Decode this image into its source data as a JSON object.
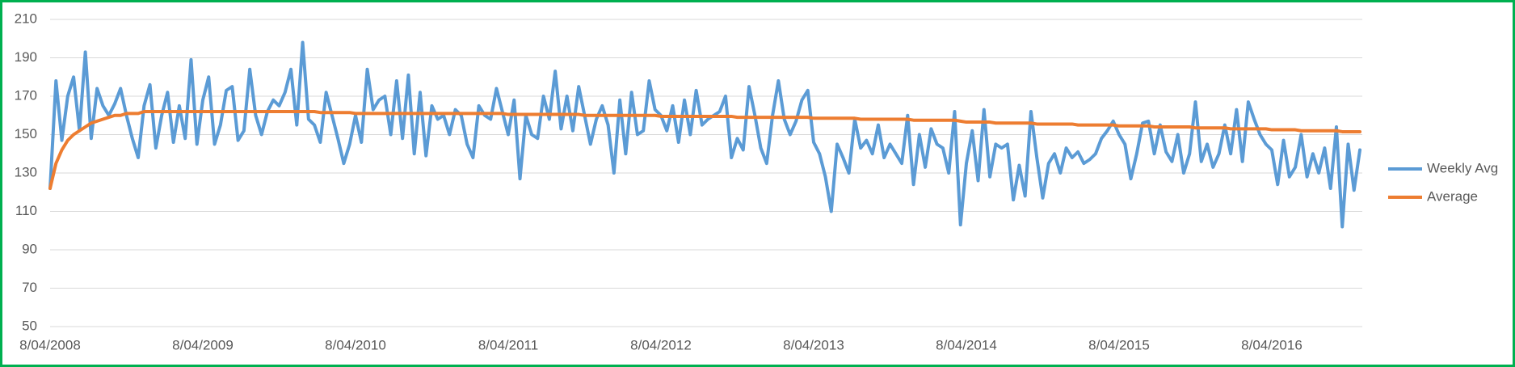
{
  "chart_data": {
    "type": "line",
    "categories": [
      "8/04/2008",
      null,
      null,
      null,
      null,
      null,
      null,
      null,
      null,
      null,
      null,
      null,
      null,
      null,
      null,
      null,
      null,
      null,
      null,
      null,
      null,
      null,
      null,
      null,
      null,
      null,
      "8/04/2009",
      null,
      null,
      null,
      null,
      null,
      null,
      null,
      null,
      null,
      null,
      null,
      null,
      null,
      null,
      null,
      null,
      null,
      null,
      null,
      null,
      null,
      null,
      null,
      null,
      null,
      "8/04/2010",
      null,
      null,
      null,
      null,
      null,
      null,
      null,
      null,
      null,
      null,
      null,
      null,
      null,
      null,
      null,
      null,
      null,
      null,
      null,
      null,
      null,
      null,
      null,
      null,
      null,
      "8/04/2011",
      null,
      null,
      null,
      null,
      null,
      null,
      null,
      null,
      null,
      null,
      null,
      null,
      null,
      null,
      null,
      null,
      null,
      null,
      null,
      null,
      null,
      null,
      null,
      null,
      null,
      "8/04/2012",
      null,
      null,
      null,
      null,
      null,
      null,
      null,
      null,
      null,
      null,
      null,
      null,
      null,
      null,
      null,
      null,
      null,
      null,
      null,
      null,
      null,
      null,
      null,
      null,
      null,
      "8/04/2013",
      null,
      null,
      null,
      null,
      null,
      null,
      null,
      null,
      null,
      null,
      null,
      null,
      null,
      null,
      null,
      null,
      null,
      null,
      null,
      null,
      null,
      null,
      null,
      null,
      null,
      "8/04/2014",
      null,
      null,
      null,
      null,
      null,
      null,
      null,
      null,
      null,
      null,
      null,
      null,
      null,
      null,
      null,
      null,
      null,
      null,
      null,
      null,
      null,
      null,
      null,
      null,
      null,
      "8/04/2015",
      null,
      null,
      null,
      null,
      null,
      null,
      null,
      null,
      null,
      null,
      null,
      null,
      null,
      null,
      null,
      null,
      null,
      null,
      null,
      null,
      null,
      null,
      null,
      null,
      null,
      "8/04/2016",
      null,
      null,
      null,
      null,
      null,
      null,
      null,
      null,
      null,
      null,
      null,
      null,
      null,
      null,
      null
    ],
    "series": [
      {
        "name": "Weekly Avg",
        "color": "#5b9bd5",
        "values": [
          122,
          178,
          147,
          170,
          180,
          152,
          193,
          148,
          174,
          165,
          160,
          166,
          174,
          160,
          148,
          138,
          165,
          176,
          143,
          160,
          172,
          146,
          165,
          148,
          189,
          145,
          168,
          180,
          145,
          155,
          173,
          175,
          147,
          152,
          184,
          160,
          150,
          162,
          168,
          165,
          172,
          184,
          155,
          198,
          158,
          155,
          146,
          172,
          160,
          148,
          135,
          145,
          160,
          146,
          184,
          163,
          168,
          170,
          150,
          178,
          148,
          181,
          140,
          172,
          139,
          165,
          158,
          160,
          150,
          163,
          160,
          145,
          138,
          165,
          160,
          158,
          174,
          162,
          150,
          168,
          127,
          160,
          150,
          148,
          170,
          158,
          183,
          153,
          170,
          152,
          175,
          160,
          145,
          158,
          165,
          155,
          130,
          168,
          140,
          172,
          150,
          152,
          178,
          163,
          160,
          152,
          165,
          146,
          168,
          150,
          173,
          155,
          158,
          160,
          162,
          170,
          138,
          148,
          142,
          175,
          160,
          143,
          135,
          160,
          178,
          158,
          150,
          157,
          168,
          173,
          146,
          140,
          128,
          110,
          145,
          138,
          130,
          158,
          143,
          147,
          140,
          155,
          138,
          145,
          140,
          135,
          160,
          124,
          150,
          133,
          153,
          145,
          143,
          130,
          162,
          103,
          135,
          152,
          126,
          163,
          128,
          145,
          143,
          145,
          116,
          134,
          118,
          162,
          138,
          117,
          135,
          140,
          130,
          143,
          138,
          141,
          135,
          137,
          140,
          148,
          152,
          157,
          150,
          145,
          127,
          140,
          156,
          157,
          140,
          155,
          141,
          136,
          150,
          130,
          140,
          167,
          136,
          145,
          133,
          140,
          155,
          140,
          163,
          136,
          167,
          158,
          150,
          145,
          142,
          124,
          147,
          128,
          133,
          150,
          128,
          140,
          130,
          143,
          122,
          154,
          102,
          145,
          121,
          142
        ]
      },
      {
        "name": "Average",
        "color": "#ed7d31",
        "values": [
          122,
          135,
          142,
          147,
          150,
          152,
          154,
          156,
          157,
          158,
          159,
          160,
          160,
          161,
          161,
          161,
          162,
          162,
          162,
          162,
          162,
          162,
          162,
          162,
          162,
          162,
          162,
          162,
          162,
          162,
          162,
          162,
          162,
          162,
          162,
          162,
          162,
          162,
          162,
          162,
          162,
          162,
          162,
          162,
          162,
          162,
          161.5,
          161.5,
          161.5,
          161.5,
          161.5,
          161.5,
          161,
          161,
          161,
          161,
          161,
          161,
          161,
          161,
          161,
          161,
          161,
          161,
          161,
          161,
          161,
          161,
          161,
          161,
          161,
          161,
          161,
          161,
          161,
          161,
          161,
          161,
          160.5,
          160.5,
          160.5,
          160.5,
          160.5,
          160.5,
          160.5,
          160.5,
          160.5,
          160.5,
          160.5,
          160.5,
          160.5,
          160,
          160,
          160,
          160,
          160,
          160,
          160,
          160,
          160,
          160,
          160,
          160,
          160,
          159.5,
          159.5,
          159.5,
          159.5,
          159.5,
          159.5,
          159.5,
          159.5,
          159.5,
          159.5,
          159.5,
          159.5,
          159.5,
          159,
          159,
          159,
          159,
          159,
          159,
          159,
          159,
          159,
          159,
          159,
          159,
          159,
          158.5,
          158.5,
          158.5,
          158.5,
          158.5,
          158.5,
          158.5,
          158.5,
          158,
          158,
          158,
          158,
          158,
          158,
          158,
          158,
          158,
          157.5,
          157.5,
          157.5,
          157.5,
          157.5,
          157.5,
          157.5,
          157.5,
          157,
          156.5,
          156.5,
          156.5,
          156.5,
          156.5,
          156,
          156,
          156,
          156,
          156,
          156,
          156,
          155.5,
          155.5,
          155.5,
          155.5,
          155.5,
          155.5,
          155.5,
          155,
          155,
          155,
          155,
          155,
          155,
          155,
          154.5,
          154.5,
          154.5,
          154.5,
          154.5,
          154.5,
          154,
          154,
          154,
          154,
          154,
          154,
          154,
          153.5,
          153.5,
          153.5,
          153.5,
          153.5,
          153.5,
          153,
          153,
          153,
          153,
          153,
          153,
          153,
          152.5,
          152.5,
          152.5,
          152.5,
          152.5,
          152,
          152,
          152,
          152,
          152,
          152,
          152,
          151.5,
          151.5,
          151.5,
          151.5
        ]
      }
    ],
    "ylim": [
      50,
      210
    ],
    "yticks": [
      50,
      70,
      90,
      110,
      130,
      150,
      170,
      190,
      210
    ],
    "grid": true,
    "legend": "right"
  }
}
